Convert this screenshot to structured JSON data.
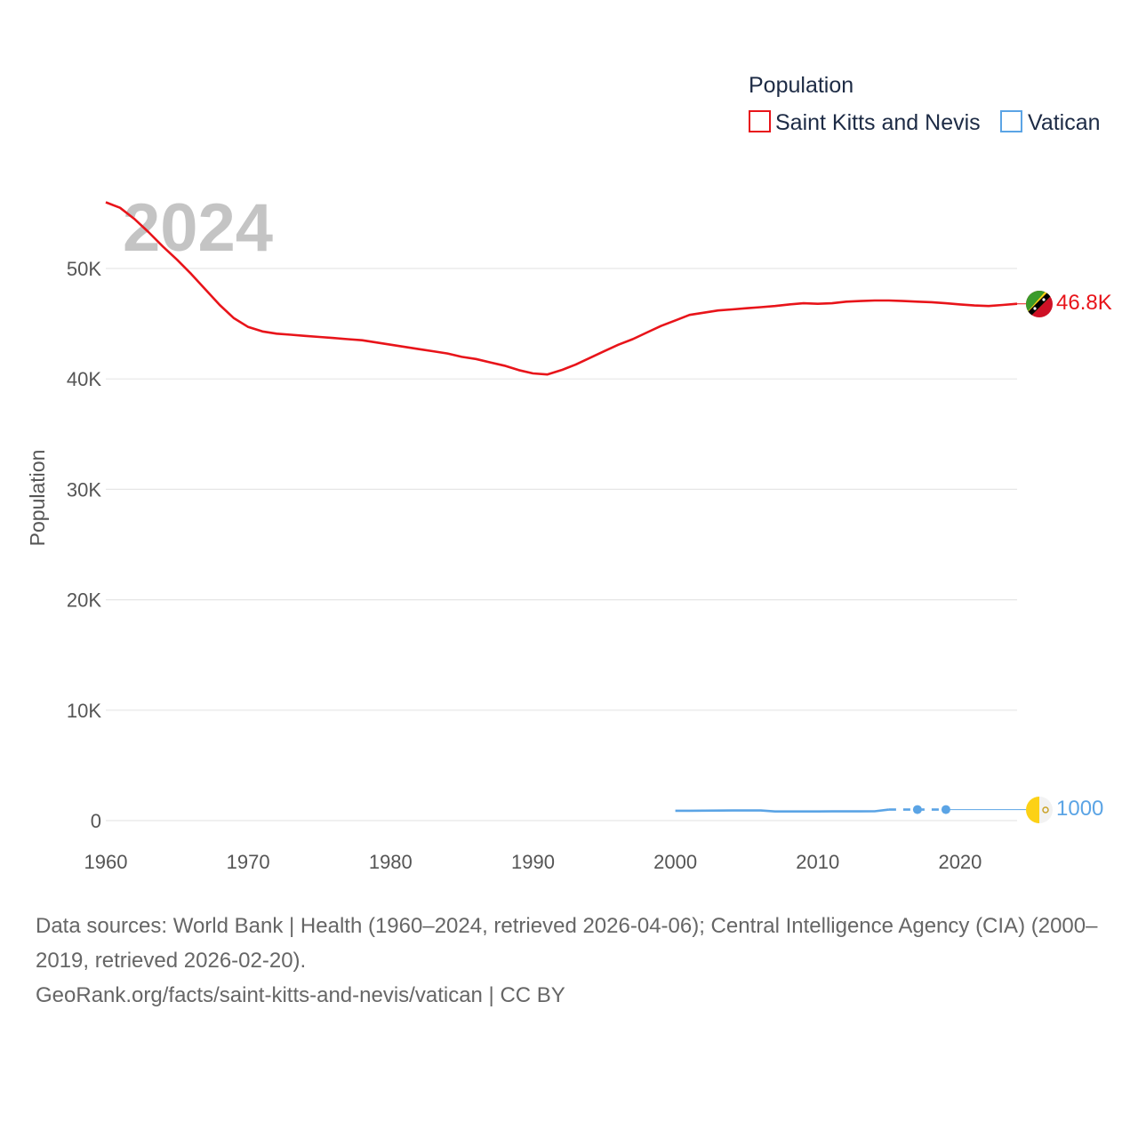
{
  "chart_data": {
    "type": "line",
    "watermark_year": "2024",
    "ylabel": "Population",
    "xlabel": "",
    "xlim": [
      1960,
      2024
    ],
    "ylim": [
      0,
      58000
    ],
    "x_ticks": [
      1960,
      1970,
      1980,
      1990,
      2000,
      2010,
      2020
    ],
    "y_ticks": [
      {
        "value": 0,
        "label": "0"
      },
      {
        "value": 10000,
        "label": "10K"
      },
      {
        "value": 20000,
        "label": "20K"
      },
      {
        "value": 30000,
        "label": "30K"
      },
      {
        "value": 40000,
        "label": "40K"
      },
      {
        "value": 50000,
        "label": "50K"
      }
    ],
    "legend": {
      "title": "Population",
      "position": "top-right",
      "entries": [
        "Saint Kitts and Nevis",
        "Vatican"
      ]
    },
    "series": [
      {
        "name": "Saint Kitts and Nevis",
        "color": "#e8141a",
        "end_label": "46.8K",
        "flag_icon": "saint-kitts-and-nevis-flag-icon",
        "points": [
          [
            1960,
            56000
          ],
          [
            1961,
            55500
          ],
          [
            1962,
            54500
          ],
          [
            1963,
            53300
          ],
          [
            1964,
            52000
          ],
          [
            1965,
            50800
          ],
          [
            1966,
            49500
          ],
          [
            1967,
            48100
          ],
          [
            1968,
            46700
          ],
          [
            1969,
            45500
          ],
          [
            1970,
            44700
          ],
          [
            1971,
            44300
          ],
          [
            1972,
            44100
          ],
          [
            1973,
            44000
          ],
          [
            1974,
            43900
          ],
          [
            1975,
            43800
          ],
          [
            1976,
            43700
          ],
          [
            1977,
            43600
          ],
          [
            1978,
            43500
          ],
          [
            1979,
            43300
          ],
          [
            1980,
            43100
          ],
          [
            1981,
            42900
          ],
          [
            1982,
            42700
          ],
          [
            1983,
            42500
          ],
          [
            1984,
            42300
          ],
          [
            1985,
            42000
          ],
          [
            1986,
            41800
          ],
          [
            1987,
            41500
          ],
          [
            1988,
            41200
          ],
          [
            1989,
            40800
          ],
          [
            1990,
            40500
          ],
          [
            1991,
            40400
          ],
          [
            1992,
            40800
          ],
          [
            1993,
            41300
          ],
          [
            1994,
            41900
          ],
          [
            1995,
            42500
          ],
          [
            1996,
            43100
          ],
          [
            1997,
            43600
          ],
          [
            1998,
            44200
          ],
          [
            1999,
            44800
          ],
          [
            2000,
            45300
          ],
          [
            2001,
            45800
          ],
          [
            2002,
            46000
          ],
          [
            2003,
            46200
          ],
          [
            2004,
            46300
          ],
          [
            2005,
            46400
          ],
          [
            2006,
            46500
          ],
          [
            2007,
            46600
          ],
          [
            2008,
            46750
          ],
          [
            2009,
            46850
          ],
          [
            2010,
            46800
          ],
          [
            2011,
            46850
          ],
          [
            2012,
            47000
          ],
          [
            2013,
            47050
          ],
          [
            2014,
            47100
          ],
          [
            2015,
            47100
          ],
          [
            2016,
            47050
          ],
          [
            2017,
            47000
          ],
          [
            2018,
            46950
          ],
          [
            2019,
            46850
          ],
          [
            2020,
            46750
          ],
          [
            2021,
            46650
          ],
          [
            2022,
            46600
          ],
          [
            2023,
            46700
          ],
          [
            2024,
            46800
          ]
        ]
      },
      {
        "name": "Vatican",
        "color": "#5ba4e5",
        "end_label": "1000",
        "flag_icon": "vatican-flag-icon",
        "points": [
          [
            2000,
            890
          ],
          [
            2001,
            890
          ],
          [
            2002,
            900
          ],
          [
            2003,
            910
          ],
          [
            2004,
            920
          ],
          [
            2005,
            920
          ],
          [
            2006,
            920
          ],
          [
            2007,
            830
          ],
          [
            2008,
            830
          ],
          [
            2009,
            830
          ],
          [
            2010,
            830
          ],
          [
            2011,
            840
          ],
          [
            2012,
            840
          ],
          [
            2013,
            840
          ],
          [
            2014,
            842
          ],
          [
            2015,
            1000
          ]
        ],
        "dashed_points": [
          [
            2015,
            1000
          ],
          [
            2017,
            1000
          ],
          [
            2019,
            1000
          ]
        ],
        "markers": [
          [
            2017,
            1000
          ],
          [
            2019,
            1000
          ]
        ],
        "projection_to": [
          2024,
          1000
        ]
      }
    ]
  },
  "footer": {
    "line1": "Data sources: World Bank | Health (1960–2024, retrieved 2026-04-06); Central Intelligence Agency (CIA) (2000–2019, retrieved 2026-02-20).",
    "line2": "GeoRank.org/facts/saint-kitts-and-nevis/vatican | CC BY"
  }
}
